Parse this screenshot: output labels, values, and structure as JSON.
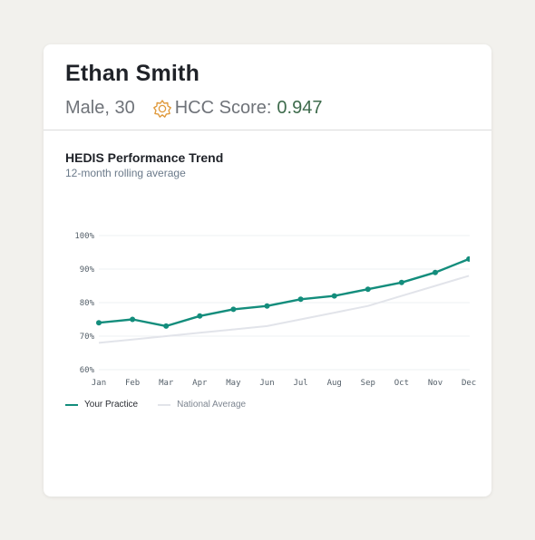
{
  "patient": {
    "name": "Ethan Smith",
    "demographics": "Male, 30",
    "hcc_label": "HCC Score:",
    "hcc_value": "0.947",
    "hcc_icon": "badge-icon"
  },
  "chart": {
    "title": "HEDIS Performance Trend",
    "subtitle": "12-month rolling average"
  },
  "legend": {
    "practice": "Your Practice",
    "national": "National Average"
  },
  "colors": {
    "practice": "#138d7c",
    "national": "#e2e4ea",
    "hcc_icon": "#e09a3c",
    "hcc_value": "#3e6b4c"
  },
  "chart_data": {
    "type": "line",
    "title": "HEDIS Performance Trend",
    "subtitle": "12-month rolling average",
    "categories": [
      "Jan",
      "Feb",
      "Mar",
      "Apr",
      "May",
      "Jun",
      "Jul",
      "Aug",
      "Sep",
      "Oct",
      "Nov",
      "Dec"
    ],
    "series": [
      {
        "name": "Your Practice",
        "values": [
          74,
          75,
          73,
          76,
          78,
          79,
          81,
          82,
          84,
          86,
          89,
          93
        ]
      },
      {
        "name": "National Average",
        "values": [
          68,
          69,
          70,
          71,
          72,
          73,
          75,
          77,
          79,
          82,
          85,
          88
        ]
      }
    ],
    "y_ticks": [
      "60%",
      "70%",
      "80%",
      "90%",
      "100%"
    ],
    "ylim": [
      60,
      100
    ],
    "grid": true,
    "legend_position": "bottom-left"
  }
}
